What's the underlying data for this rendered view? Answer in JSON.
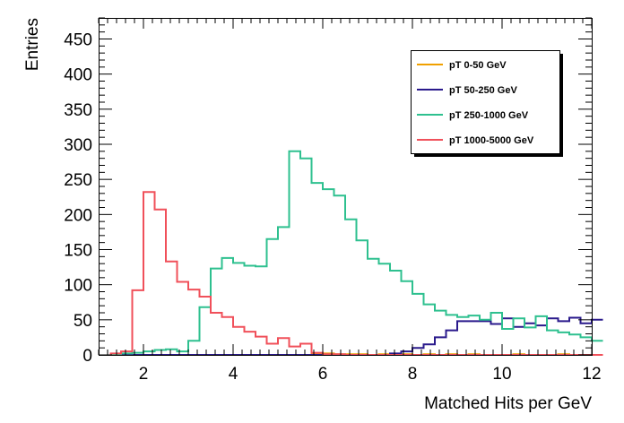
{
  "chart_data": {
    "type": "line",
    "xlabel": "Matched Hits per GeV",
    "ylabel": "Entries",
    "xlim": [
      1,
      12
    ],
    "ylim": [
      0,
      480
    ],
    "x_ticks": [
      2,
      4,
      6,
      8,
      10,
      12
    ],
    "y_ticks": [
      0,
      50,
      100,
      150,
      200,
      250,
      300,
      350,
      400,
      450
    ],
    "grid": false,
    "legend_position": "top-right",
    "bin_width": 0.25,
    "x_start": 1.25,
    "series": [
      {
        "name": "pT 0-50 GeV",
        "color": "#f0a000",
        "values": [
          0,
          0,
          0,
          0,
          0,
          0,
          0,
          0,
          0,
          0,
          0,
          0,
          0,
          0,
          0,
          0,
          0,
          0,
          1,
          2,
          1,
          1,
          1,
          0,
          1,
          0,
          1,
          0,
          1,
          0,
          1,
          0,
          1,
          0,
          0,
          0,
          1,
          0,
          0,
          0,
          1,
          0,
          0,
          0
        ]
      },
      {
        "name": "pT 50-250 GeV",
        "color": "#2a1a8c",
        "values": [
          0,
          0,
          0,
          0,
          0,
          0,
          0,
          0,
          0,
          0,
          0,
          0,
          0,
          0,
          0,
          0,
          0,
          0,
          0,
          0,
          0,
          0,
          0,
          0,
          0,
          2,
          5,
          10,
          15,
          25,
          35,
          48,
          48,
          48,
          44,
          52,
          40,
          45,
          42,
          52,
          48,
          53,
          45,
          50
        ]
      },
      {
        "name": "pT 250-1000 GeV",
        "color": "#2ec08f",
        "values": [
          0,
          2,
          3,
          5,
          7,
          8,
          5,
          20,
          68,
          123,
          138,
          131,
          127,
          126,
          165,
          182,
          290,
          280,
          245,
          236,
          227,
          193,
          163,
          137,
          130,
          120,
          105,
          87,
          72,
          63,
          57,
          54,
          56,
          50,
          60,
          37,
          52,
          39,
          55,
          35,
          32,
          29,
          25,
          20
        ]
      },
      {
        "name": "pT 1000-5000 GeV",
        "color": "#f0505a",
        "values": [
          2,
          5,
          92,
          232,
          207,
          133,
          104,
          93,
          83,
          60,
          54,
          40,
          33,
          26,
          16,
          24,
          12,
          16,
          3,
          1,
          1,
          0,
          0,
          0,
          0,
          0,
          0,
          0,
          0,
          0,
          0,
          0,
          0,
          0,
          0,
          0,
          0,
          0,
          0,
          0,
          0,
          0,
          0,
          0
        ]
      }
    ]
  }
}
